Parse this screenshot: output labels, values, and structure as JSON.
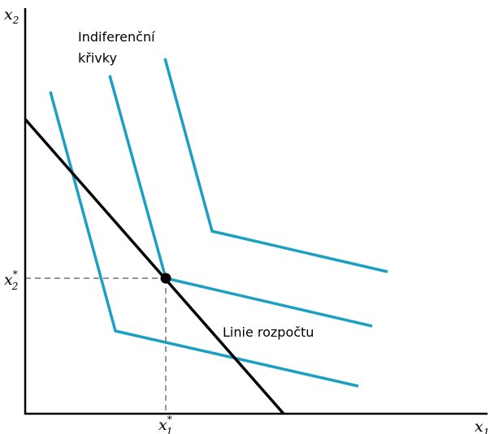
{
  "axes": {
    "x_label": "x",
    "x_sub": "1",
    "y_label": "x",
    "y_sub": "2"
  },
  "annotations": {
    "curves_label_line1": "Indiferenční",
    "curves_label_line2": "křivky",
    "budget_label": "Linie rozpočtu"
  },
  "optimum": {
    "x_label": "x",
    "x_sub": "1",
    "x_sup": "*",
    "y_label": "x",
    "y_sub": "2",
    "y_sup": "*"
  },
  "colors": {
    "curves": "#1ba0c4",
    "budget": "#000000"
  }
}
